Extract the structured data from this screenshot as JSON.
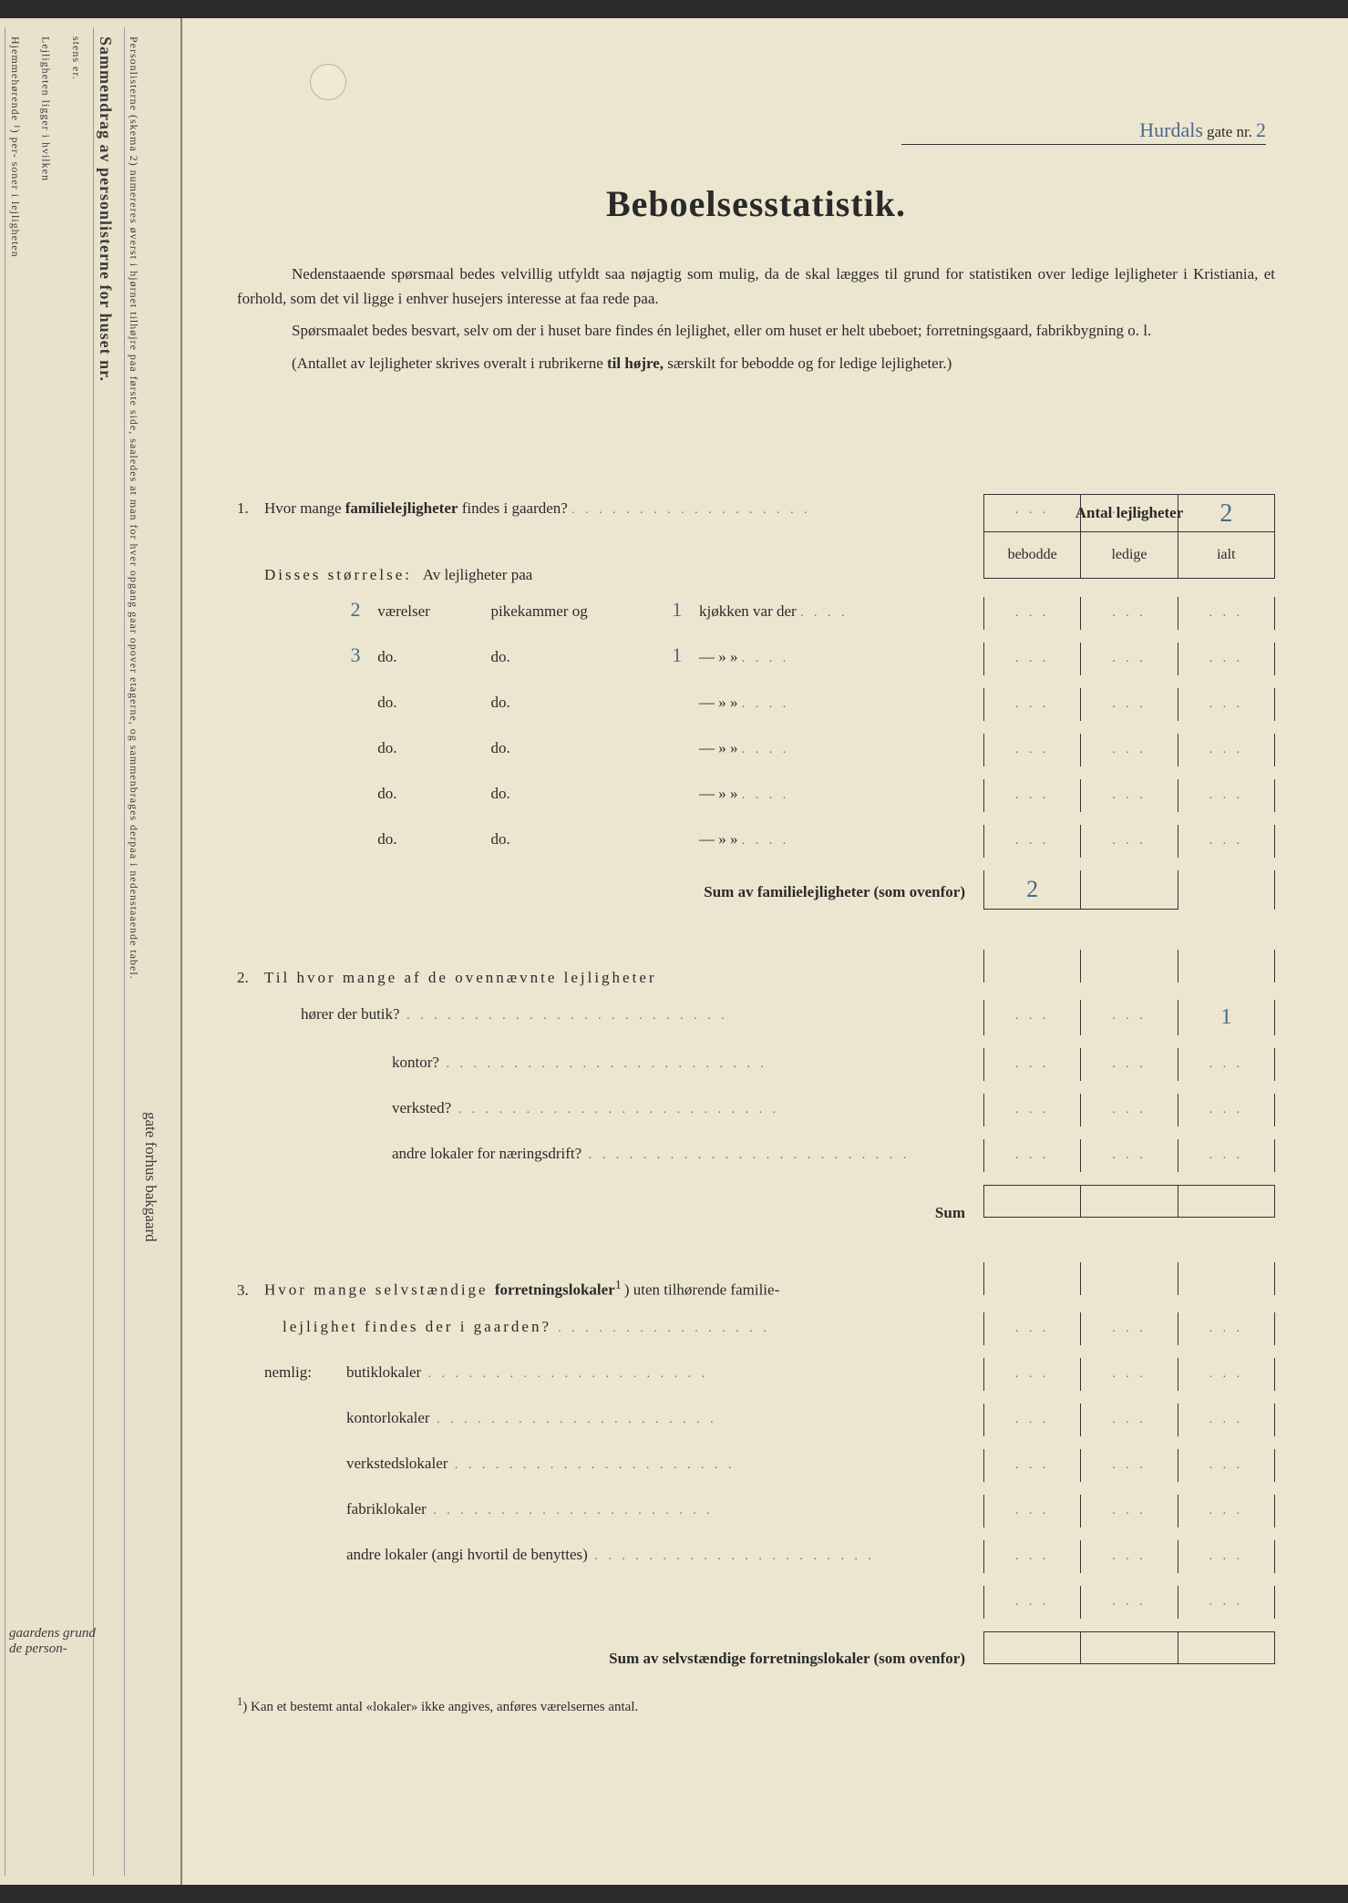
{
  "colors": {
    "paper": "#ece6d0",
    "paper_left": "#e8e2cc",
    "ink": "#2a2a2a",
    "handwriting": "#4a6a8a",
    "border": "#333333",
    "background": "#2a2a28"
  },
  "fonts": {
    "body_size_pt": 17,
    "title_size_pt": 40,
    "handwriting_family": "cursive"
  },
  "header": {
    "street_handwritten": "Hurdals",
    "gate_label": "gate nr.",
    "number_handwritten": "2"
  },
  "title": "Beboelsesstatistik.",
  "intro": {
    "p1": "Nedenstaaende spørsmaal bedes velvillig utfyldt saa nøjagtig som mulig, da de skal lægges til grund for statistiken over ledige lejligheter i Kristiania, et forhold, som det vil ligge i enhver husejers interesse at faa rede paa.",
    "p2": "Spørsmaalet bedes besvart, selv om der i huset bare findes én lejlighet, eller om huset er helt ubeboet; forretningsgaard, fabrikbygning o. l.",
    "p3_prefix": "(Antallet av lejligheter skrives overalt i rubrikerne",
    "p3_bold": "til højre,",
    "p3_suffix": "særskilt for bebodde og for ledige lejligheter.)"
  },
  "table_header": {
    "title": "Antal lejligheter",
    "cols": [
      "bebodde",
      "ledige",
      "ialt"
    ]
  },
  "q1": {
    "num": "1.",
    "text_a": "Hvor mange",
    "text_b": "familielejligheter",
    "text_c": "findes i gaarden?",
    "answer_ialt": "2",
    "size_label": "Disses størrelse:",
    "size_sub": "Av lejligheter paa",
    "rows": [
      {
        "vaer": "2",
        "vaer_label": "værelser",
        "pike": "pikekammer og",
        "kjk": "1",
        "kjk_label": "kjøkken var der"
      },
      {
        "vaer": "3",
        "vaer_label": "do.",
        "pike": "do.",
        "kjk": "1",
        "kjk_label": "—     »    »"
      },
      {
        "vaer": "",
        "vaer_label": "do.",
        "pike": "do.",
        "kjk": "",
        "kjk_label": "—     »    »"
      },
      {
        "vaer": "",
        "vaer_label": "do.",
        "pike": "do.",
        "kjk": "",
        "kjk_label": "—     »    »"
      },
      {
        "vaer": "",
        "vaer_label": "do.",
        "pike": "do.",
        "kjk": "",
        "kjk_label": "—     »    »"
      },
      {
        "vaer": "",
        "vaer_label": "do.",
        "pike": "do.",
        "kjk": "",
        "kjk_label": "—     »    »"
      }
    ],
    "sum_label": "Sum av familielejligheter",
    "sum_suffix": "(som ovenfor)",
    "sum_bebodde": "2"
  },
  "q2": {
    "num": "2.",
    "text": "Til hvor mange af de ovennævnte lejligheter",
    "rows": [
      {
        "label": "hører der butik?",
        "ialt": "1"
      },
      {
        "label": "kontor?"
      },
      {
        "label": "verksted?"
      },
      {
        "label": "andre lokaler for næringsdrift?"
      }
    ],
    "sum_label": "Sum"
  },
  "q3": {
    "num": "3.",
    "text_a": "Hvor mange selvstændige",
    "text_b": "forretningslokaler",
    "text_sup": "1",
    "text_c": ") uten tilhørende familie-",
    "text_d": "lejlighet findes der i gaarden?",
    "nemlig": "nemlig:",
    "rows": [
      "butiklokaler",
      "kontorlokaler",
      "verkstedslokaler",
      "fabriklokaler",
      "andre lokaler (angi hvortil de benyttes)"
    ],
    "sum_label": "Sum av selvstændige forretningslokaler",
    "sum_suffix": "(som ovenfor)"
  },
  "footnote": {
    "num": "1",
    "text": ")   Kan et bestemt antal «lokaler» ikke angives, anføres værelsernes antal."
  },
  "left_strip": {
    "title": "Sammendrag av personlisterne for huset nr.",
    "note": "Personlisterne (skema 2) numereres øverst i hjørnet tilhøjre paa første side, saaledes at man for hver opgang gaar opover etagerne, og sammenbrages derpaa i nedenstaaende tabel.",
    "col_headers": [
      "stens er.",
      "Lejligheten ligger i hvilken",
      "Hjemmehørende ¹) per- soner i lejligheten"
    ],
    "bottom1": "gaardens grund",
    "bottom2": "de         person-",
    "gate_forhus": "gate   forhus\nbakgaard"
  }
}
